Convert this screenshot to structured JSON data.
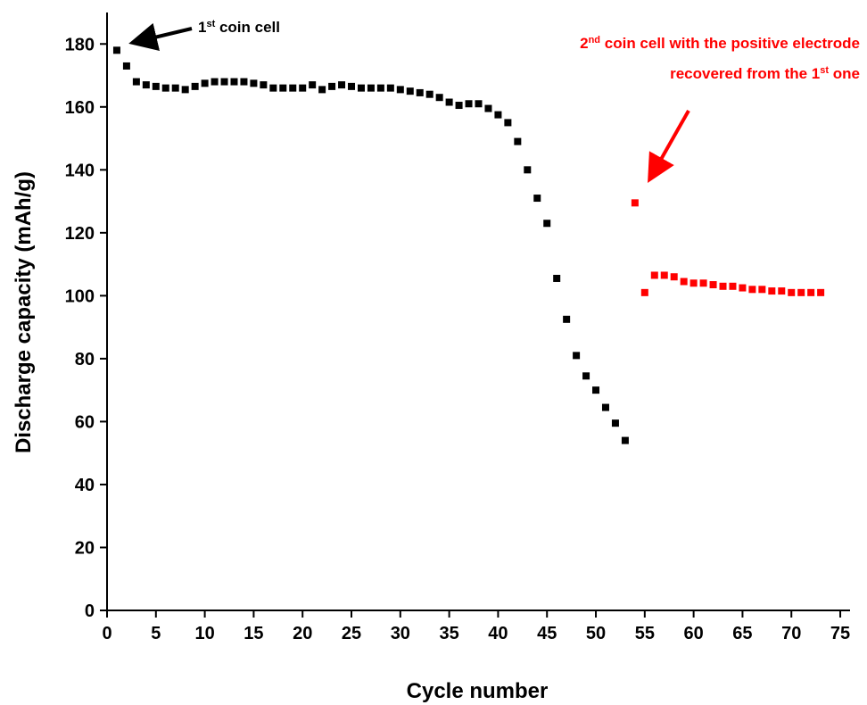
{
  "chart_data": {
    "type": "scatter",
    "x_label": "Cycle number",
    "y_label": "Discharge capacity (mAh/g)",
    "xlim": [
      0,
      76
    ],
    "ylim": [
      0,
      190
    ],
    "xticks": [
      0,
      5,
      10,
      15,
      20,
      25,
      30,
      35,
      40,
      45,
      50,
      55,
      60,
      65,
      70,
      75
    ],
    "yticks": [
      0,
      20,
      40,
      60,
      80,
      100,
      120,
      140,
      160,
      180
    ],
    "grid": false,
    "series": [
      {
        "color": "#000000",
        "x": [
          1,
          2,
          3,
          4,
          5,
          6,
          7,
          8,
          9,
          10,
          11,
          12,
          13,
          14,
          15,
          16,
          17,
          18,
          19,
          20,
          21,
          22,
          23,
          24,
          25,
          26,
          27,
          28,
          29,
          30,
          31,
          32,
          33,
          34,
          35,
          36,
          37,
          38,
          39,
          40,
          41,
          42,
          43,
          44,
          45,
          46,
          47,
          48,
          49,
          50,
          51,
          52,
          53
        ],
        "values": [
          178,
          173,
          168,
          167,
          166.5,
          166,
          166,
          165.5,
          166.5,
          167.5,
          168,
          168,
          168,
          168,
          167.5,
          167,
          166,
          166,
          166,
          166,
          167,
          165.5,
          166.5,
          167,
          166.5,
          166,
          166,
          166,
          166,
          165.5,
          165,
          164.5,
          164,
          163,
          161.5,
          160.5,
          161,
          161,
          159.5,
          157.5,
          155,
          149,
          140,
          131,
          123,
          105.5,
          92.5,
          81,
          74.5,
          70,
          64.5,
          59.5,
          54
        ]
      },
      {
        "color": "#ff0000",
        "x": [
          54,
          55,
          56,
          57,
          58,
          59,
          60,
          61,
          62,
          63,
          64,
          65,
          66,
          67,
          68,
          69,
          70,
          71,
          72,
          73
        ],
        "values": [
          129.5,
          101,
          106.5,
          106.5,
          106,
          104.5,
          104,
          104,
          103.5,
          103,
          103,
          102.5,
          102,
          102,
          101.5,
          101.5,
          101,
          101,
          101,
          101
        ]
      }
    ],
    "annotations": [
      {
        "color": "#000000",
        "lines": [
          [
            {
              "text": "1"
            },
            {
              "text": "st",
              "sup": true
            },
            {
              "text": " coin cell"
            }
          ]
        ]
      },
      {
        "color": "#ff0000",
        "lines": [
          [
            {
              "text": "2"
            },
            {
              "text": "nd",
              "sup": true
            },
            {
              "text": " coin cell with the positive electrode"
            }
          ],
          [
            {
              "text": "recovered from the 1"
            },
            {
              "text": "st",
              "sup": true
            },
            {
              "text": " one"
            }
          ]
        ]
      }
    ]
  }
}
